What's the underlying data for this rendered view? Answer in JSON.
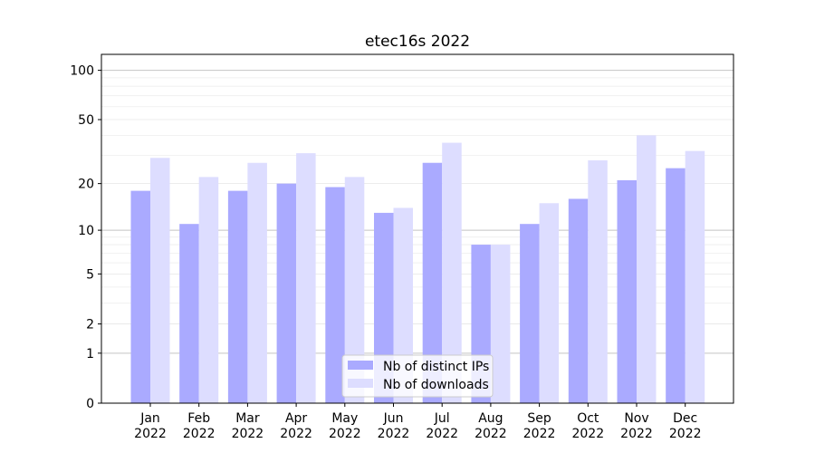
{
  "chart_data": {
    "type": "bar",
    "title": "etec16s 2022",
    "xlabel": "",
    "ylabel": "",
    "y_scale": "symlog",
    "ylim": [
      0,
      125
    ],
    "y_ticks": [
      0,
      1,
      2,
      5,
      10,
      20,
      50,
      100
    ],
    "grid": "horizontal",
    "legend_position": "bottom-center",
    "categories": [
      [
        "Jan",
        "2022"
      ],
      [
        "Feb",
        "2022"
      ],
      [
        "Mar",
        "2022"
      ],
      [
        "Apr",
        "2022"
      ],
      [
        "May",
        "2022"
      ],
      [
        "Jun",
        "2022"
      ],
      [
        "Jul",
        "2022"
      ],
      [
        "Aug",
        "2022"
      ],
      [
        "Sep",
        "2022"
      ],
      [
        "Oct",
        "2022"
      ],
      [
        "Nov",
        "2022"
      ],
      [
        "Dec",
        "2022"
      ]
    ],
    "series": [
      {
        "name": "Nb of distinct IPs",
        "color": "#aaaaff",
        "values": [
          18,
          11,
          18,
          20,
          19,
          13,
          27,
          8,
          11,
          16,
          21,
          25
        ]
      },
      {
        "name": "Nb of downloads",
        "color": "#ddddff",
        "values": [
          29,
          22,
          27,
          31,
          22,
          14,
          36,
          8,
          15,
          28,
          40,
          32
        ]
      }
    ]
  }
}
